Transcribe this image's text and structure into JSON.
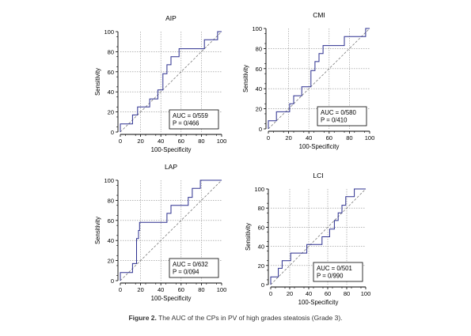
{
  "figure": {
    "caption_label": "Figure 2.",
    "caption_text": " The AUC of the CPs in PV of high grades steatosis (Grade 3)."
  },
  "colors": {
    "curve": "#2b2f8f",
    "diagonal": "#6a6a6a",
    "grid": "#8c8c8c",
    "axis": "#000000"
  },
  "chart_data": [
    {
      "type": "line",
      "title": "AIP",
      "xlabel": "100-Specificity",
      "ylabel": "Sensitivity",
      "xlim": [
        0,
        100
      ],
      "ylim": [
        0,
        100
      ],
      "xticks": [
        "0",
        "20",
        "40",
        "60",
        "80",
        "100"
      ],
      "yticks": [
        "0",
        "20",
        "40",
        "60",
        "80",
        "100"
      ],
      "grid": true,
      "annotation": [
        "AUC = 0/559",
        "P = 0/466"
      ],
      "roc": [
        [
          0,
          0
        ],
        [
          0,
          8
        ],
        [
          12,
          8
        ],
        [
          12,
          17
        ],
        [
          17,
          17
        ],
        [
          17,
          25
        ],
        [
          29,
          25
        ],
        [
          29,
          33
        ],
        [
          37,
          33
        ],
        [
          37,
          42
        ],
        [
          42,
          42
        ],
        [
          42,
          58
        ],
        [
          46,
          58
        ],
        [
          46,
          67
        ],
        [
          50,
          67
        ],
        [
          50,
          75
        ],
        [
          58,
          75
        ],
        [
          58,
          83
        ],
        [
          83,
          83
        ],
        [
          83,
          92
        ],
        [
          96,
          92
        ],
        [
          96,
          100
        ],
        [
          100,
          100
        ]
      ]
    },
    {
      "type": "line",
      "title": "CMI",
      "xlabel": "100-Specificity",
      "ylabel": "Sensitivity",
      "xlim": [
        0,
        100
      ],
      "ylim": [
        0,
        100
      ],
      "xticks": [
        "0",
        "20",
        "40",
        "60",
        "80",
        "100"
      ],
      "yticks": [
        "0",
        "20",
        "40",
        "60",
        "80",
        "100"
      ],
      "grid": true,
      "annotation": [
        "AUC = 0/580",
        "P = 0/410"
      ],
      "roc": [
        [
          0,
          0
        ],
        [
          0,
          8
        ],
        [
          8,
          8
        ],
        [
          8,
          17
        ],
        [
          21,
          17
        ],
        [
          21,
          25
        ],
        [
          25,
          25
        ],
        [
          25,
          33
        ],
        [
          33,
          33
        ],
        [
          33,
          42
        ],
        [
          42,
          42
        ],
        [
          42,
          58
        ],
        [
          46,
          58
        ],
        [
          46,
          67
        ],
        [
          50,
          67
        ],
        [
          50,
          75
        ],
        [
          54,
          75
        ],
        [
          54,
          83
        ],
        [
          75,
          83
        ],
        [
          75,
          92
        ],
        [
          96,
          92
        ],
        [
          96,
          100
        ],
        [
          100,
          100
        ]
      ]
    },
    {
      "type": "line",
      "title": "LAP",
      "xlabel": "100-Specificity",
      "ylabel": "Sensitivity",
      "xlim": [
        0,
        100
      ],
      "ylim": [
        0,
        100
      ],
      "xticks": [
        "0",
        "20",
        "40",
        "60",
        "80",
        "100"
      ],
      "yticks": [
        "0",
        "20",
        "40",
        "60",
        "80",
        "100"
      ],
      "grid": true,
      "annotation": [
        "AUC = 0/632",
        "P = 0/094"
      ],
      "roc": [
        [
          0,
          0
        ],
        [
          0,
          8
        ],
        [
          12,
          8
        ],
        [
          12,
          17
        ],
        [
          16,
          17
        ],
        [
          16,
          42
        ],
        [
          18,
          42
        ],
        [
          18,
          50
        ],
        [
          19,
          50
        ],
        [
          19,
          58
        ],
        [
          46,
          58
        ],
        [
          46,
          67
        ],
        [
          50,
          67
        ],
        [
          50,
          75
        ],
        [
          67,
          75
        ],
        [
          67,
          83
        ],
        [
          71,
          83
        ],
        [
          71,
          92
        ],
        [
          79,
          92
        ],
        [
          79,
          100
        ],
        [
          100,
          100
        ]
      ]
    },
    {
      "type": "line",
      "title": "LCI",
      "xlabel": "100-Specificity",
      "ylabel": "Sensitivity",
      "xlim": [
        0,
        100
      ],
      "ylim": [
        0,
        100
      ],
      "xticks": [
        "0",
        "20",
        "40",
        "60",
        "80",
        "100"
      ],
      "yticks": [
        "0",
        "20",
        "40",
        "60",
        "80",
        "100"
      ],
      "grid": true,
      "annotation": [
        "AUC = 0/501",
        "P = 0/990"
      ],
      "roc": [
        [
          0,
          0
        ],
        [
          0,
          8
        ],
        [
          8,
          8
        ],
        [
          8,
          17
        ],
        [
          12,
          17
        ],
        [
          12,
          25
        ],
        [
          21,
          25
        ],
        [
          21,
          33
        ],
        [
          38,
          33
        ],
        [
          38,
          42
        ],
        [
          54,
          42
        ],
        [
          54,
          50
        ],
        [
          62,
          50
        ],
        [
          62,
          58
        ],
        [
          67,
          58
        ],
        [
          67,
          67
        ],
        [
          71,
          67
        ],
        [
          71,
          75
        ],
        [
          75,
          75
        ],
        [
          75,
          83
        ],
        [
          79,
          83
        ],
        [
          79,
          92
        ],
        [
          88,
          92
        ],
        [
          88,
          100
        ],
        [
          100,
          100
        ]
      ]
    }
  ]
}
